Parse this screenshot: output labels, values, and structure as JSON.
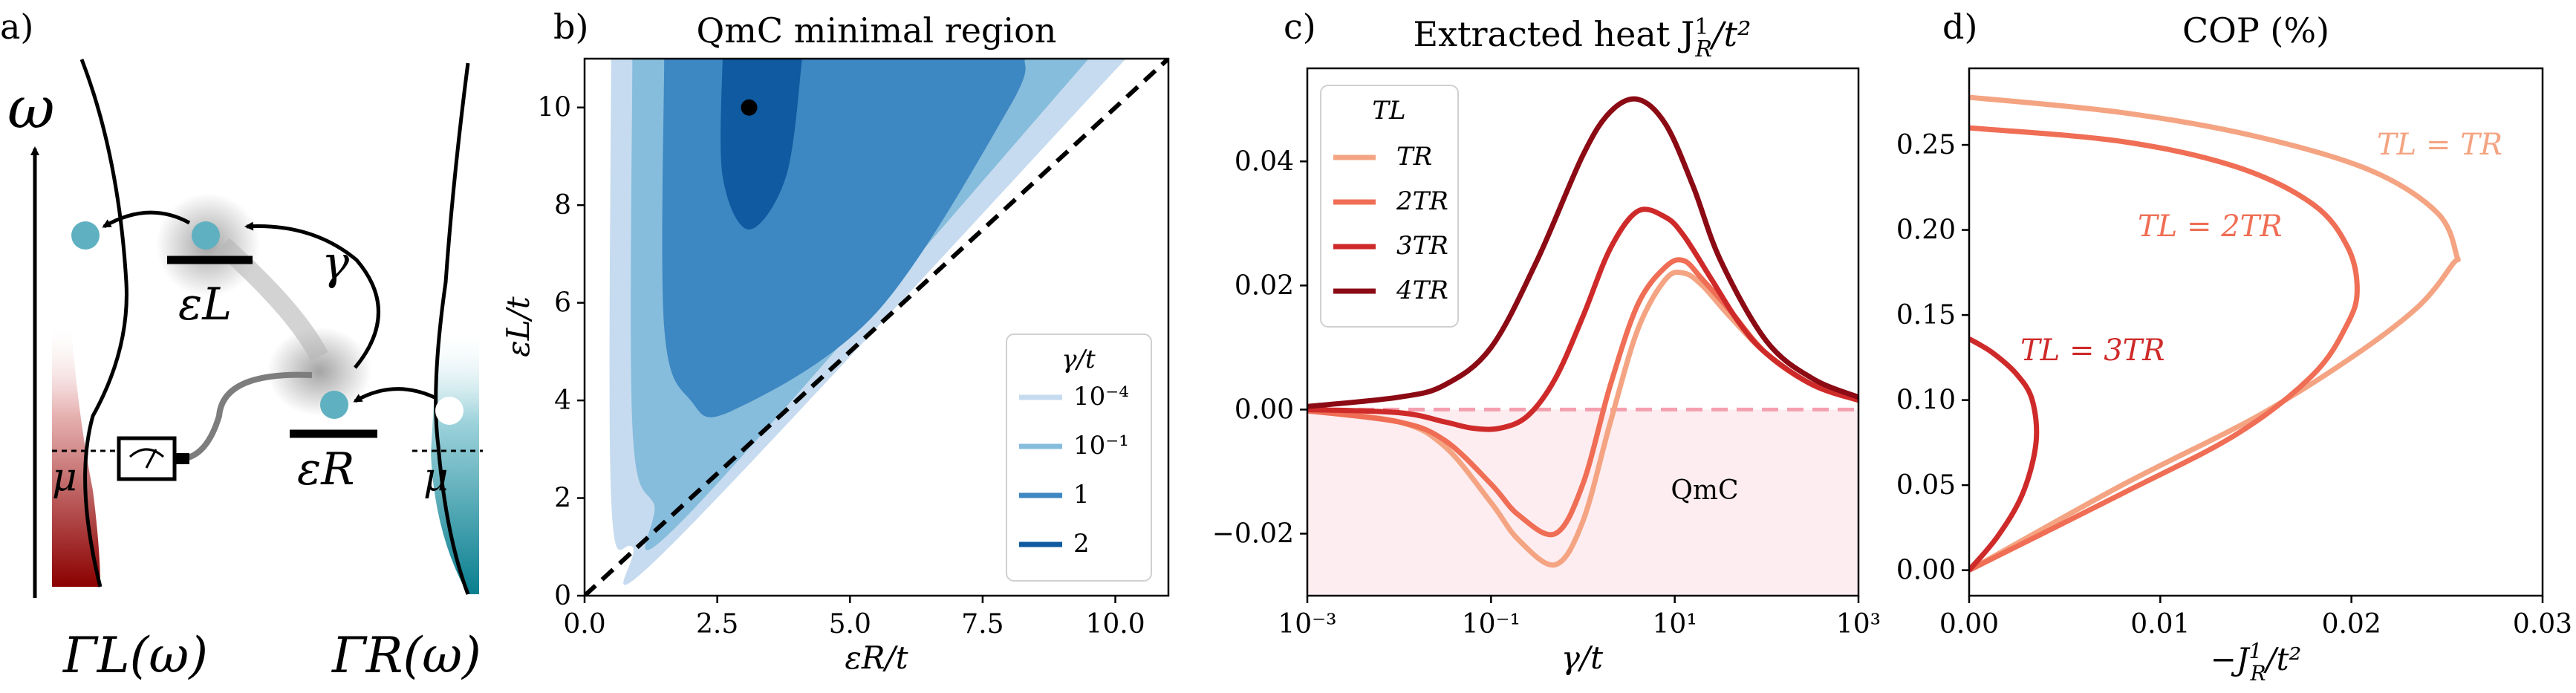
{
  "panels": {
    "a": {
      "label": "a)",
      "omega_label": "ω",
      "gamma_label": "γ",
      "eps_L_label": "εL",
      "eps_R_label": "εR",
      "mu_left": "μ",
      "mu_right": "μ",
      "gamma_L_label": "ΓL(ω)",
      "gamma_R_label": "ΓR(ω)",
      "colors": {
        "left_bath": "#8b0000",
        "right_bath": "#0a7f8f",
        "dot": "#5fb0c0",
        "arrow": "#000000"
      }
    },
    "b": {
      "label": "b)"
    },
    "c": {
      "label": "c)"
    },
    "d": {
      "label": "d)"
    }
  },
  "chart_data": [
    {
      "id": "b",
      "type": "contour",
      "title": "QmC minimal region",
      "xlabel": "εR/t",
      "ylabel": "εL/t",
      "xlim": [
        0,
        11
      ],
      "ylim": [
        0,
        11
      ],
      "xticks": [
        "0.0",
        "2.5",
        "5.0",
        "7.5",
        "10.0"
      ],
      "xtick_values": [
        0,
        2.5,
        5,
        7.5,
        10
      ],
      "yticks": [
        "0",
        "2",
        "4",
        "6",
        "8",
        "10"
      ],
      "ytick_values": [
        0,
        2,
        4,
        6,
        8,
        10
      ],
      "diagonal": "εL = εR",
      "marker": {
        "x": 3.1,
        "y": 10.0
      },
      "legend_title": "γ/t",
      "regions": [
        {
          "gamma": "10^-4",
          "label": "10⁻⁴",
          "color": "#c6dbef",
          "outline": [
            [
              0.5,
              11
            ],
            [
              0.5,
              2.0
            ],
            [
              0.9,
              1.0
            ],
            [
              1.6,
              1.0
            ],
            [
              10.2,
              11
            ]
          ]
        },
        {
          "gamma": "10^-1",
          "label": "10⁻¹",
          "color": "#86bcdc",
          "outline": [
            [
              0.9,
              11
            ],
            [
              0.9,
              3.5
            ],
            [
              1.3,
              1.9
            ],
            [
              1.9,
              1.6
            ],
            [
              9.5,
              11
            ]
          ]
        },
        {
          "gamma": "1",
          "label": "1",
          "color": "#3d87c2",
          "outline": [
            [
              1.5,
              11
            ],
            [
              1.5,
              5.5
            ],
            [
              2.0,
              4.0
            ],
            [
              2.8,
              3.8
            ],
            [
              5.5,
              5.8
            ],
            [
              8.0,
              10.0
            ],
            [
              8.3,
              11
            ]
          ]
        },
        {
          "gamma": "2",
          "label": "2",
          "color": "#0f5aa0",
          "outline": [
            [
              2.6,
              11
            ],
            [
              2.6,
              8.6
            ],
            [
              3.1,
              7.5
            ],
            [
              3.8,
              8.6
            ],
            [
              4.1,
              11
            ]
          ]
        }
      ]
    },
    {
      "id": "c",
      "type": "line",
      "title": "Extracted heat J",
      "title_sup": "1",
      "title_sub": "R",
      "title_suffix": "/t²",
      "xlabel": "γ/t",
      "xscale": "log",
      "xlim": [
        -3,
        3
      ],
      "ylim": [
        -0.03,
        0.055
      ],
      "xticks": [
        "10⁻³",
        "10⁻¹",
        "10¹",
        "10³"
      ],
      "xtick_values": [
        -3,
        -1,
        1,
        3
      ],
      "yticks": [
        "−0.02",
        "0.00",
        "0.02",
        "0.04"
      ],
      "ytick_values": [
        -0.02,
        0.0,
        0.02,
        0.04
      ],
      "legend_title": "TL",
      "shaded_region_label": "QmC",
      "series": [
        {
          "name": "TR",
          "color": "#f4a482",
          "x": [
            -3,
            -2,
            -1.5,
            -1,
            -0.7,
            -0.3,
            0,
            0.3,
            0.6,
            0.9,
            1.1,
            1.3,
            1.6,
            2,
            2.5,
            3
          ],
          "y": [
            -0.0002,
            -0.002,
            -0.006,
            -0.015,
            -0.021,
            -0.025,
            -0.018,
            -0.002,
            0.013,
            0.021,
            0.022,
            0.02,
            0.015,
            0.009,
            0.004,
            0.0015
          ]
        },
        {
          "name": "2TR",
          "color": "#ef6e55",
          "x": [
            -3,
            -2,
            -1.5,
            -1,
            -0.7,
            -0.3,
            0,
            0.3,
            0.6,
            0.9,
            1.1,
            1.3,
            1.6,
            2,
            2.5,
            3
          ],
          "y": [
            -0.0002,
            -0.002,
            -0.005,
            -0.012,
            -0.017,
            -0.02,
            -0.012,
            0.004,
            0.017,
            0.023,
            0.024,
            0.021,
            0.016,
            0.009,
            0.004,
            0.0015
          ]
        },
        {
          "name": "3TR",
          "color": "#cf2a2a",
          "x": [
            -3,
            -2,
            -1.5,
            -1.2,
            -0.9,
            -0.6,
            -0.3,
            0,
            0.3,
            0.6,
            0.9,
            1.1,
            1.4,
            1.7,
            2,
            2.5,
            3
          ],
          "y": [
            0.0,
            -0.0005,
            -0.002,
            -0.003,
            -0.003,
            -0.001,
            0.005,
            0.015,
            0.026,
            0.032,
            0.031,
            0.028,
            0.021,
            0.014,
            0.009,
            0.004,
            0.0015
          ]
        },
        {
          "name": "4TR",
          "color": "#8b0a14",
          "x": [
            -3,
            -2,
            -1.5,
            -1,
            -0.5,
            0,
            0.3,
            0.6,
            0.9,
            1.2,
            1.5,
            2,
            2.5,
            3
          ],
          "y": [
            0.0005,
            0.002,
            0.004,
            0.01,
            0.024,
            0.041,
            0.048,
            0.05,
            0.046,
            0.036,
            0.024,
            0.011,
            0.005,
            0.002
          ]
        }
      ]
    },
    {
      "id": "d",
      "type": "line",
      "title": "COP (%)",
      "xlabel": "−J",
      "xlabel_sup": "1",
      "xlabel_sub": "R",
      "xlabel_suffix": "/t²",
      "xlim": [
        0,
        0.03
      ],
      "ylim": [
        -0.015,
        0.295
      ],
      "xticks": [
        "0.00",
        "0.01",
        "0.02",
        "0.03"
      ],
      "xtick_values": [
        0,
        0.01,
        0.02,
        0.03
      ],
      "yticks": [
        "0.00",
        "0.05",
        "0.10",
        "0.15",
        "0.20",
        "0.25"
      ],
      "ytick_values": [
        0,
        0.05,
        0.1,
        0.15,
        0.2,
        0.25
      ],
      "series": [
        {
          "name": "TL = TR",
          "color": "#f4a482",
          "x": [
            0,
            0.008,
            0.015,
            0.02,
            0.0235,
            0.0253,
            0.0255,
            0.0245,
            0.021,
            0.015,
            0.008,
            0.0
          ],
          "y": [
            0.0,
            0.05,
            0.09,
            0.125,
            0.155,
            0.18,
            0.185,
            0.21,
            0.235,
            0.255,
            0.269,
            0.278
          ]
        },
        {
          "name": "TL = 2TR",
          "color": "#ef6e55",
          "x": [
            0,
            0.008,
            0.014,
            0.018,
            0.0198,
            0.0203,
            0.0198,
            0.018,
            0.014,
            0.008,
            0.0
          ],
          "y": [
            0.0,
            0.045,
            0.08,
            0.115,
            0.145,
            0.165,
            0.19,
            0.215,
            0.237,
            0.252,
            0.26
          ]
        },
        {
          "name": "TL = 3TR",
          "color": "#cf2a2a",
          "x": [
            0,
            0.0015,
            0.0028,
            0.0035,
            0.0033,
            0.0025,
            0.0012,
            0.0
          ],
          "y": [
            0.0,
            0.02,
            0.045,
            0.075,
            0.1,
            0.115,
            0.128,
            0.136
          ]
        }
      ]
    }
  ]
}
